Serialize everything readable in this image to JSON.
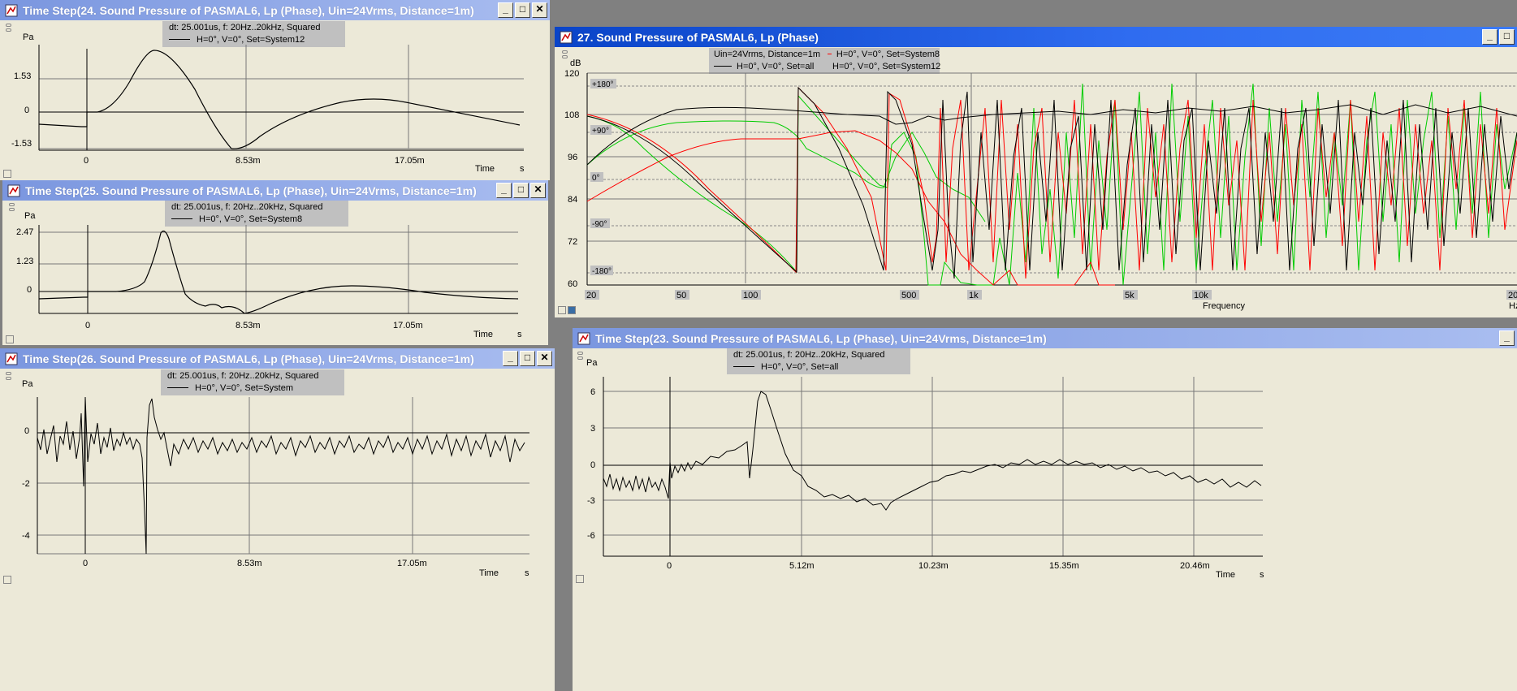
{
  "colors": {
    "black": "#000000",
    "red": "#ff0000",
    "green": "#00cc00",
    "grid": "#777777",
    "legend_bg": "#c0c0c0"
  },
  "windows": {
    "w24": {
      "title": "Time Step(24. Sound Pressure of PASMAL6, Lp (Phase), Uin=24Vrms, Distance=1m)",
      "legend": [
        "dt: 25.001us, f: 20Hz..20kHz, Squared",
        "H=0°, V=0°, Set=System12"
      ],
      "yunit": "Pa",
      "xlabel": "Time",
      "xunit": "s",
      "yticks": [
        "1.53",
        "0",
        "-1.53"
      ],
      "xticks": [
        "0",
        "8.53m",
        "17.05m"
      ]
    },
    "w25": {
      "title": "Time Step(25. Sound Pressure of PASMAL6, Lp (Phase), Uin=24Vrms, Distance=1m)",
      "legend": [
        "dt: 25.001us, f: 20Hz..20kHz, Squared",
        "H=0°, V=0°, Set=System8"
      ],
      "yunit": "Pa",
      "xlabel": "Time",
      "xunit": "s",
      "yticks": [
        "2.47",
        "1.23",
        "0"
      ],
      "xticks": [
        "0",
        "8.53m",
        "17.05m"
      ]
    },
    "w26": {
      "title": "Time Step(26. Sound Pressure of PASMAL6, Lp (Phase), Uin=24Vrms, Distance=1m)",
      "legend": [
        "dt: 25.001us, f: 20Hz..20kHz, Squared",
        "H=0°, V=0°, Set=System"
      ],
      "yunit": "Pa",
      "xlabel": "Time",
      "xunit": "s",
      "yticks": [
        "0",
        "-2",
        "-4"
      ],
      "xticks": [
        "0",
        "8.53m",
        "17.05m"
      ]
    },
    "w27": {
      "title": "27. Sound Pressure of PASMAL6, Lp (Phase)",
      "legend": [
        "Uin=24Vrms, Distance=1m",
        "H=0°, V=0°, Set=all",
        "H=0°, V=0°, Set=System8",
        "H=0°, V=0°, Set=System12"
      ],
      "yunit": "dB",
      "xlabel": "Frequency",
      "xunit": "Hz",
      "yticks": [
        "120",
        "108",
        "96",
        "84",
        "72",
        "60"
      ],
      "phaseticks": [
        "+180°",
        "+90°",
        "0°",
        "-90°",
        "-180°"
      ],
      "xticks": [
        "20",
        "50",
        "100",
        "500",
        "1k",
        "5k",
        "10k",
        "20"
      ]
    },
    "w23": {
      "title": "Time Step(23. Sound Pressure of PASMAL6, Lp (Phase), Uin=24Vrms, Distance=1m)",
      "legend": [
        "dt: 25.001us, f: 20Hz..20kHz, Squared",
        "H=0°, V=0°, Set=all"
      ],
      "yunit": "Pa",
      "xlabel": "Time",
      "xunit": "s",
      "yticks": [
        "6",
        "3",
        "0",
        "-3",
        "-6"
      ],
      "xticks": [
        "0",
        "5.12m",
        "10.23m",
        "15.35m",
        "20.46m"
      ]
    }
  }
}
